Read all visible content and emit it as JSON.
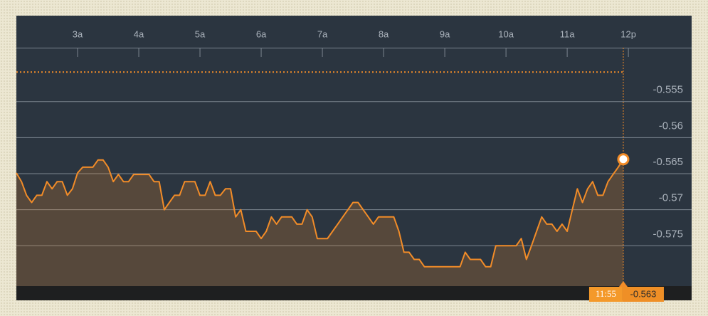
{
  "chart_data": {
    "type": "line",
    "color": "#f28c28",
    "fill": "rgba(242,140,40,0.22)",
    "grid": true,
    "cursor_label": "11:55",
    "reference_line": -0.5509,
    "x": [
      120,
      125,
      130,
      135,
      140,
      145,
      150,
      155,
      160,
      165,
      170,
      175,
      180,
      185,
      190,
      195,
      200,
      205,
      210,
      215,
      220,
      225,
      230,
      235,
      240,
      245,
      250,
      255,
      260,
      265,
      270,
      275,
      280,
      285,
      290,
      295,
      300,
      305,
      310,
      315,
      320,
      325,
      330,
      335,
      340,
      345,
      350,
      355,
      360,
      365,
      370,
      375,
      380,
      385,
      390,
      395,
      400,
      405,
      410,
      415,
      420,
      425,
      430,
      435,
      440,
      445,
      450,
      455,
      460,
      465,
      470,
      475,
      480,
      485,
      490,
      495,
      500,
      505,
      510,
      515,
      520,
      525,
      530,
      535,
      540,
      545,
      550,
      555,
      560,
      565,
      570,
      575,
      580,
      585,
      590,
      595,
      600,
      605,
      610,
      615,
      620,
      625,
      630,
      635,
      640,
      645,
      650,
      655,
      660,
      665,
      670,
      675,
      680,
      685,
      690,
      695,
      700,
      705,
      710,
      715
    ],
    "values": [
      -0.5649,
      -0.5661,
      -0.568,
      -0.569,
      -0.568,
      -0.568,
      -0.5661,
      -0.5671,
      -0.5661,
      -0.5661,
      -0.568,
      -0.5671,
      -0.5649,
      -0.5641,
      -0.5641,
      -0.5641,
      -0.5631,
      -0.5631,
      -0.5641,
      -0.5661,
      -0.5651,
      -0.5661,
      -0.5661,
      -0.5651,
      -0.5651,
      -0.5651,
      -0.5651,
      -0.5661,
      -0.5661,
      -0.57,
      -0.569,
      -0.568,
      -0.568,
      -0.5661,
      -0.5661,
      -0.5661,
      -0.568,
      -0.568,
      -0.5661,
      -0.568,
      -0.568,
      -0.5671,
      -0.5671,
      -0.571,
      -0.57,
      -0.573,
      -0.573,
      -0.573,
      -0.574,
      -0.573,
      -0.571,
      -0.572,
      -0.571,
      -0.571,
      -0.571,
      -0.572,
      -0.572,
      -0.57,
      -0.571,
      -0.574,
      -0.574,
      -0.574,
      -0.573,
      -0.572,
      -0.571,
      -0.57,
      -0.569,
      -0.569,
      -0.57,
      -0.571,
      -0.572,
      -0.571,
      -0.571,
      -0.571,
      -0.571,
      -0.573,
      -0.5759,
      -0.5759,
      -0.5769,
      -0.5769,
      -0.5779,
      -0.5779,
      -0.5779,
      -0.5779,
      -0.5779,
      -0.5779,
      -0.5779,
      -0.5779,
      -0.5759,
      -0.5769,
      -0.5769,
      -0.5769,
      -0.5779,
      -0.5779,
      -0.575,
      -0.575,
      -0.575,
      -0.575,
      -0.575,
      -0.574,
      -0.5769,
      -0.575,
      -0.573,
      -0.571,
      -0.572,
      -0.572,
      -0.573,
      -0.572,
      -0.573,
      -0.57,
      -0.5671,
      -0.569,
      -0.5671,
      -0.5661,
      -0.568,
      -0.568,
      -0.5661,
      -0.5651,
      -0.5641,
      -0.563
    ],
    "xlim": [
      120,
      782
    ],
    "ylim": [
      -0.5806,
      -0.5488
    ],
    "xticks": [
      {
        "value": 180,
        "label": "3a"
      },
      {
        "value": 240,
        "label": "4a"
      },
      {
        "value": 300,
        "label": "5a"
      },
      {
        "value": 360,
        "label": "6a"
      },
      {
        "value": 420,
        "label": "7a"
      },
      {
        "value": 480,
        "label": "8a"
      },
      {
        "value": 540,
        "label": "9a"
      },
      {
        "value": 600,
        "label": "10a"
      },
      {
        "value": 660,
        "label": "11a"
      },
      {
        "value": 720,
        "label": "12p"
      }
    ],
    "yticks": [
      -0.555,
      -0.56,
      -0.565,
      -0.57,
      -0.575
    ]
  }
}
